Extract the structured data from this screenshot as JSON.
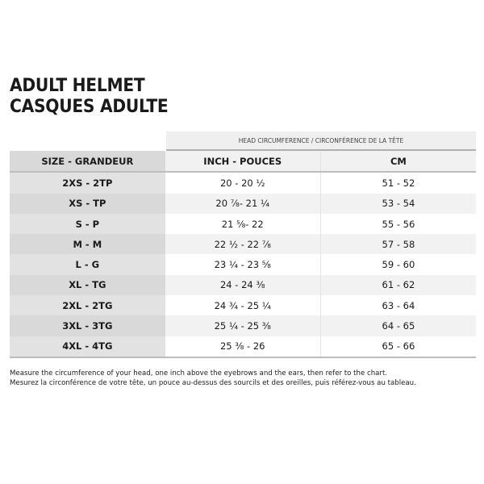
{
  "title": {
    "line1": "ADULT HELMET",
    "line2": "CASQUES ADULTE"
  },
  "table": {
    "group_header": "HEAD CIRCUMFERENCE / CIRCONFÉRENCE DE LA TÊTE",
    "columns": [
      "SIZE - GRANDEUR",
      "INCH - POUCES",
      "CM"
    ],
    "rows": [
      [
        "2XS - 2TP",
        "20 - 20 ½",
        "51 - 52"
      ],
      [
        "XS - TP",
        "20 ⅞- 21 ¼",
        "53 - 54"
      ],
      [
        "S - P",
        "21 ⅝- 22",
        "55 - 56"
      ],
      [
        "M - M",
        "22 ½ - 22 ⅞",
        "57 - 58"
      ],
      [
        "L - G",
        "23 ¼ - 23 ⅝",
        "59 - 60"
      ],
      [
        "XL - TG",
        "24 - 24 ⅜",
        "61 - 62"
      ],
      [
        "2XL - 2TG",
        "24 ¾ - 25 ¼",
        "63 - 64"
      ],
      [
        "3XL - 3TG",
        "25 ¼ - 25 ⅜",
        "64 - 65"
      ],
      [
        "4XL - 4TG",
        "25 ⅜ - 26",
        "65 - 66"
      ]
    ]
  },
  "notes": [
    "Measure the circumference of your head, one inch above the eyebrows and the ears, then refer to the chart.",
    "Mesurez la circonférence de votre tête, un pouce au-dessus des sourcils et des oreilles, puis référez-vous au tableau."
  ]
}
